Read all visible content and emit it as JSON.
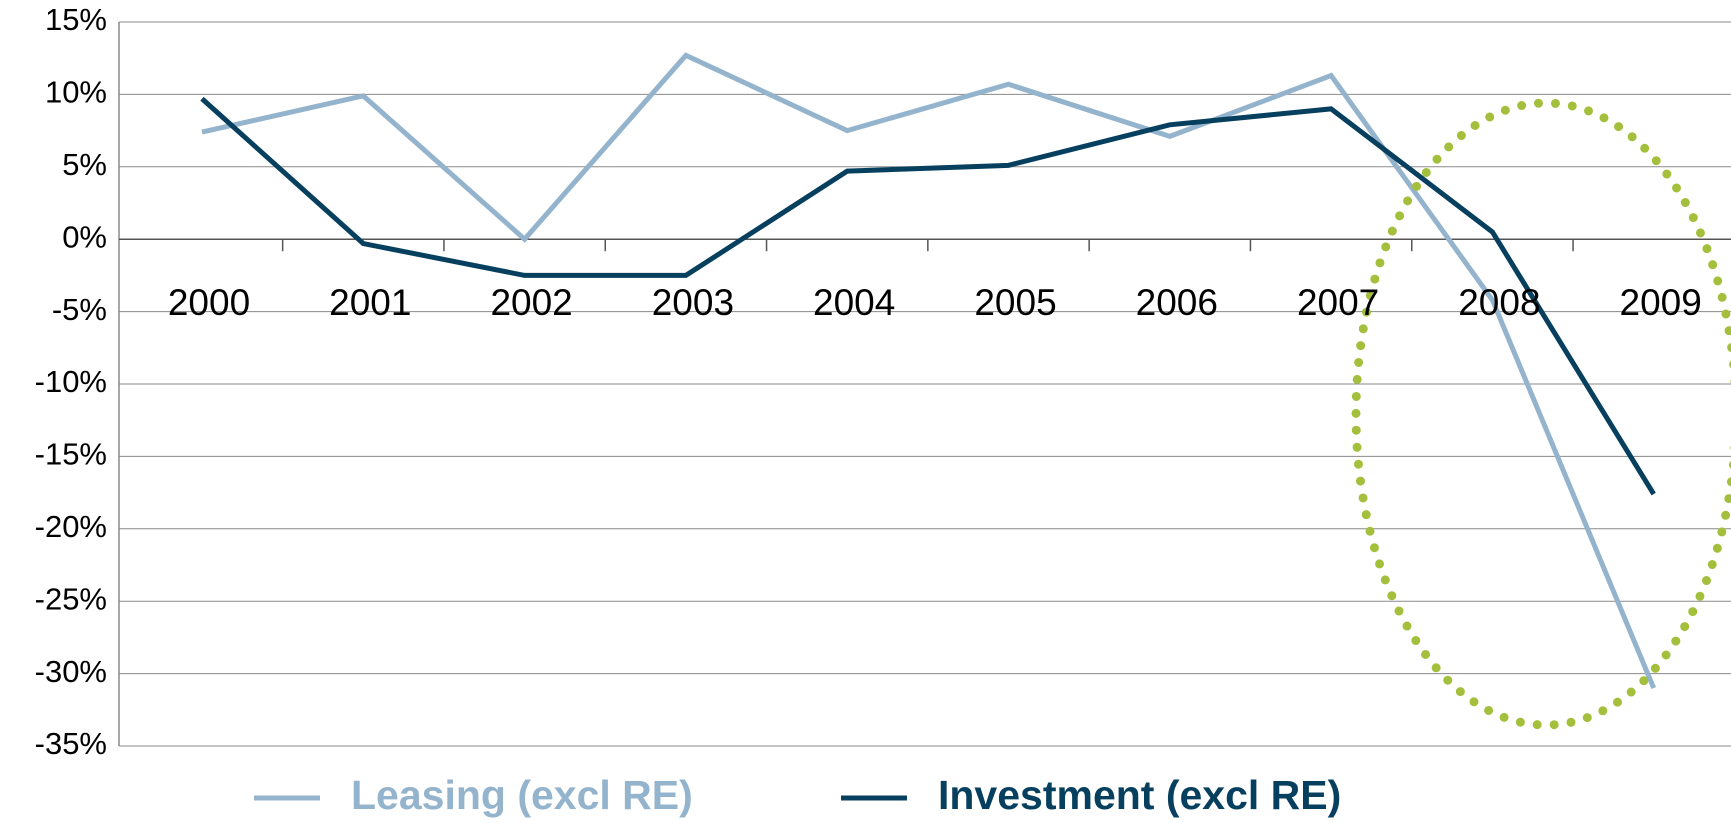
{
  "chart_data": {
    "type": "line",
    "categories": [
      "2000",
      "2001",
      "2002",
      "2003",
      "2004",
      "2005",
      "2006",
      "2007",
      "2008",
      "2009"
    ],
    "series": [
      {
        "name": "Leasing (excl RE)",
        "color": "#94b3cc",
        "values": [
          7.4,
          9.9,
          0,
          12.7,
          7.5,
          10.7,
          7.1,
          11.3,
          -4.2,
          -31
        ]
      },
      {
        "name": "Investment (excl RE)",
        "color": "#073f5e",
        "values": [
          9.7,
          -0.3,
          -2.5,
          -2.5,
          4.7,
          5.1,
          7.9,
          9.0,
          0.5,
          -17.6
        ]
      }
    ],
    "ylim": [
      -35,
      15
    ],
    "yticks": [
      {
        "value": -35,
        "label": "-35%"
      },
      {
        "value": -30,
        "label": "-30%"
      },
      {
        "value": -25,
        "label": "-25%"
      },
      {
        "value": -20,
        "label": "-20%"
      },
      {
        "value": -15,
        "label": "-15%"
      },
      {
        "value": -10,
        "label": "-10%"
      },
      {
        "value": -5,
        "label": "-5%"
      },
      {
        "value": 0,
        "label": "0%"
      },
      {
        "value": 5,
        "label": "5%"
      },
      {
        "value": 10,
        "label": "10%"
      },
      {
        "value": 15,
        "label": "15%"
      }
    ],
    "grid": true,
    "legend": "bottom"
  }
}
